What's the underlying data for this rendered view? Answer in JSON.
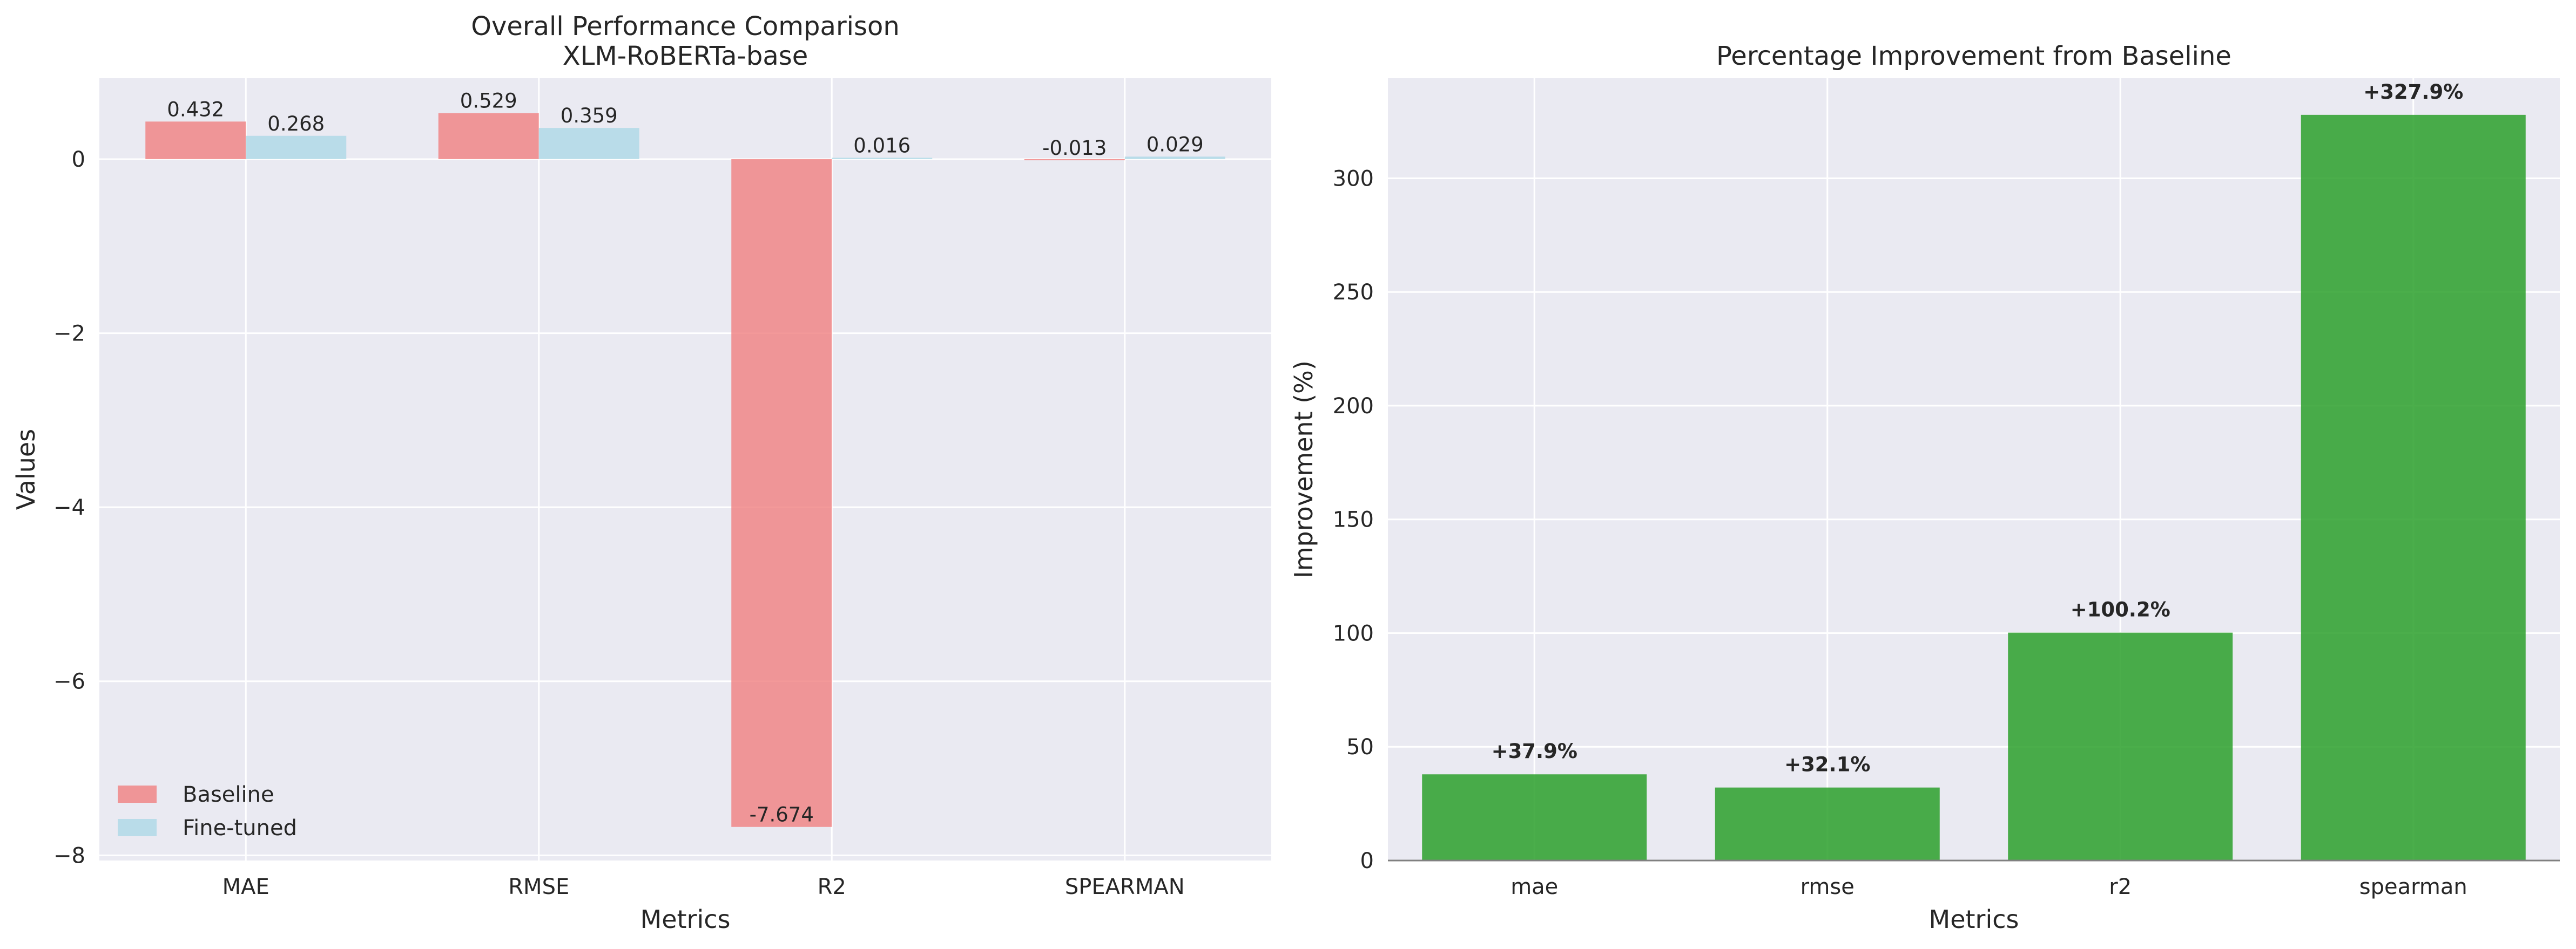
{
  "chart_data": [
    {
      "type": "bar",
      "title": "Overall Performance Comparison",
      "subtitle": "XLM-RoBERTa-base",
      "xlabel": "Metrics",
      "ylabel": "Values",
      "categories": [
        "MAE",
        "RMSE",
        "R2",
        "SPEARMAN"
      ],
      "series": [
        {
          "name": "Baseline",
          "values": [
            0.432,
            0.529,
            -7.674,
            -0.013
          ],
          "labels": [
            "0.432",
            "0.529",
            "-7.674",
            "-0.013"
          ],
          "color": "#f08080"
        },
        {
          "name": "Fine-tuned",
          "values": [
            0.268,
            0.359,
            0.016,
            0.029
          ],
          "labels": [
            "0.268",
            "0.359",
            "0.016",
            "0.029"
          ],
          "color": "#add8e6"
        }
      ],
      "ylim": [
        -8.06,
        0.93
      ],
      "yticks": [
        0,
        -2,
        -4,
        -6,
        -8
      ],
      "ytick_labels": [
        "0",
        "−2",
        "−4",
        "−6",
        "−8"
      ],
      "legend": "lower-left",
      "grid": true
    },
    {
      "type": "bar",
      "title": "Percentage Improvement from Baseline",
      "xlabel": "Metrics",
      "ylabel": "Improvement (%)",
      "categories": [
        "mae",
        "rmse",
        "r2",
        "spearman"
      ],
      "series": [
        {
          "values": [
            37.9,
            32.1,
            100.2,
            327.9
          ],
          "labels": [
            "+37.9%",
            "+32.1%",
            "+100.2%",
            "+327.9%"
          ],
          "color": "#2ca02c"
        }
      ],
      "ylim": [
        0,
        344
      ],
      "yticks": [
        0,
        50,
        100,
        150,
        200,
        250,
        300
      ],
      "ytick_labels": [
        "0",
        "50",
        "100",
        "150",
        "200",
        "250",
        "300"
      ],
      "grid": true
    }
  ]
}
